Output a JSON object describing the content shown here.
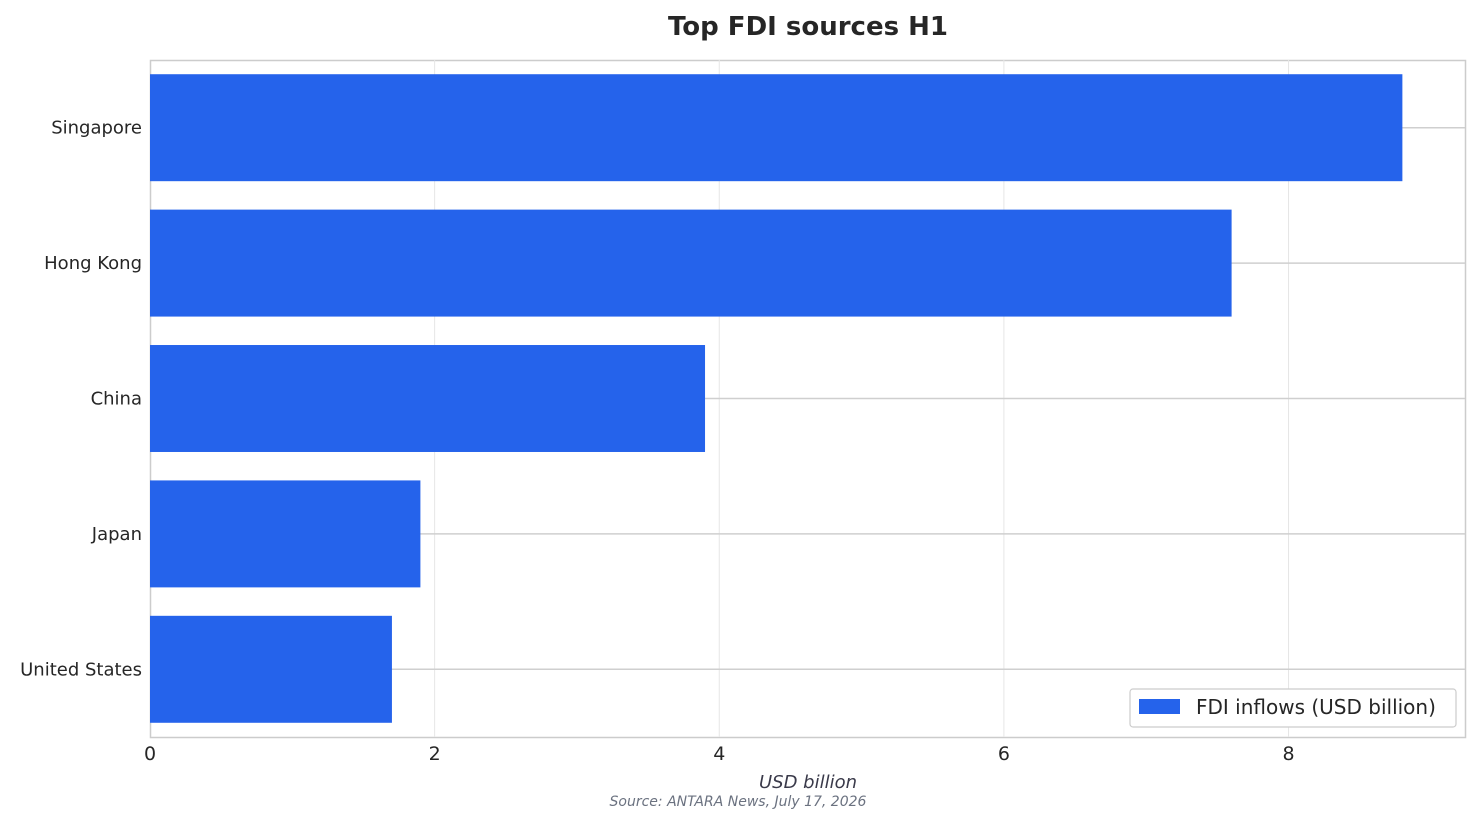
{
  "chart_data": {
    "type": "bar",
    "orientation": "horizontal",
    "title": "Top FDI sources H1",
    "xlabel": "USD billion",
    "ylabel": "",
    "source": "Source: ANTARA News, July 17, 2026",
    "categories": [
      "Singapore",
      "Hong Kong",
      "China",
      "Japan",
      "United States"
    ],
    "series": [
      {
        "name": "FDI inflows (USD billion)",
        "values": [
          8.8,
          7.6,
          3.9,
          1.9,
          1.7
        ],
        "color": "#2563eb"
      }
    ],
    "xlim": [
      0,
      9.24
    ],
    "xticks": [
      0,
      2,
      4,
      6,
      8
    ],
    "grid": true,
    "legend_position": "lower-right"
  }
}
